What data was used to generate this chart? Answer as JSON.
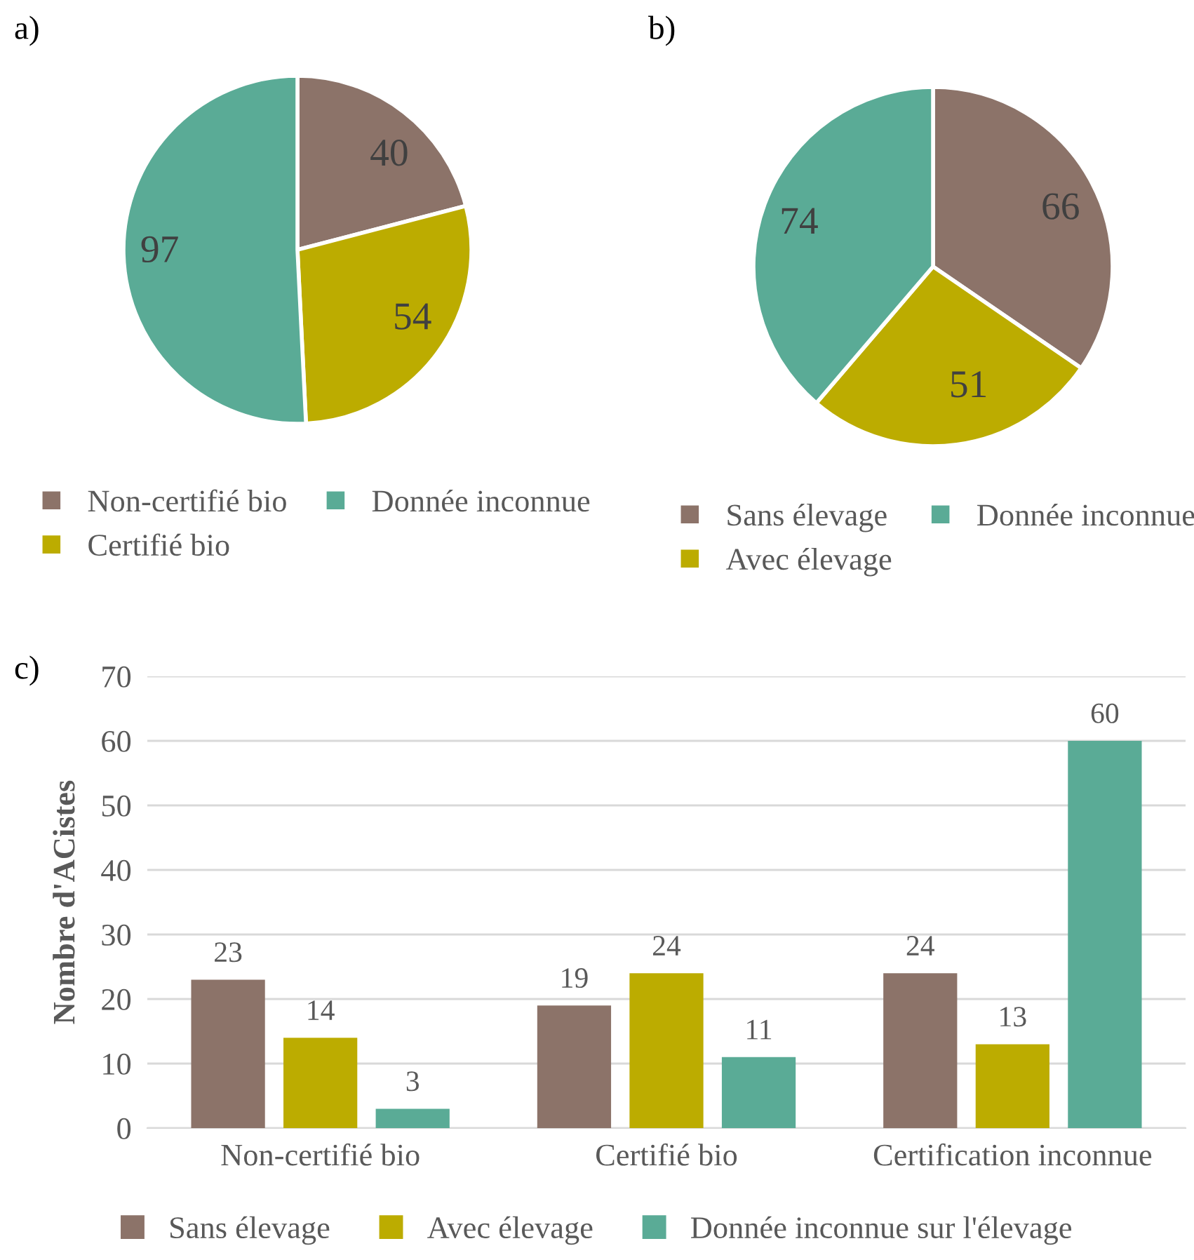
{
  "chart_data": [
    {
      "type": "pie",
      "title": "a)",
      "categories": [
        "Non-certifié bio",
        "Certifié bio",
        "Donnée inconnue"
      ],
      "values": [
        40,
        54,
        97
      ],
      "colors": [
        "#8c7369",
        "#bcac00",
        "#5aab96"
      ],
      "data_labels": true,
      "legend": "bottom"
    },
    {
      "type": "pie",
      "title": "b)",
      "categories": [
        "Sans élevage",
        "Avec élevage",
        "Donnée inconnue"
      ],
      "values": [
        66,
        51,
        74
      ],
      "colors": [
        "#8c7369",
        "#bcac00",
        "#5aab96"
      ],
      "data_labels": true,
      "legend": "bottom"
    },
    {
      "type": "bar",
      "title": "c)",
      "ylabel": "Nombre d'ACistes",
      "categories": [
        "Non-certifié bio",
        "Certifié bio",
        "Certification inconnue"
      ],
      "series": [
        {
          "name": "Sans élevage",
          "color": "#8c7369",
          "values": [
            23,
            19,
            24
          ]
        },
        {
          "name": "Avec élevage",
          "color": "#bcac00",
          "values": [
            14,
            24,
            13
          ]
        },
        {
          "name": "Donnée inconnue sur l'élevage",
          "color": "#5aab96",
          "values": [
            3,
            11,
            60
          ]
        }
      ],
      "ylim": [
        0,
        70
      ],
      "yticks": [
        0,
        10,
        20,
        30,
        40,
        50,
        60,
        70
      ],
      "grid": "y",
      "data_labels": true,
      "legend": "bottom"
    }
  ]
}
